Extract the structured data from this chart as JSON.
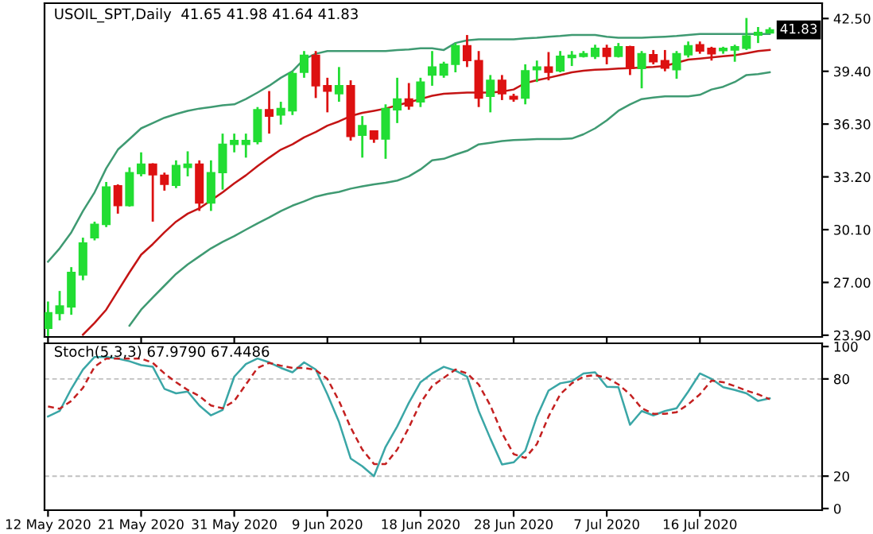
{
  "chart_data": [
    {
      "type": "candlestick",
      "title": "USOIL_SPT,Daily  41.65 41.98 41.64 41.83",
      "tick_labels": "y",
      "grid": false,
      "categories": [
        null,
        null,
        null,
        null,
        null,
        null,
        null,
        null,
        null,
        null,
        null,
        null,
        null,
        null,
        null,
        null,
        null,
        null,
        null,
        null,
        null,
        null,
        null,
        null,
        null,
        null,
        null,
        null,
        null,
        null,
        null,
        null,
        null,
        null,
        null,
        null,
        null,
        null,
        null,
        null,
        null,
        null,
        null,
        null,
        null,
        null,
        null,
        null,
        null,
        null,
        null,
        null,
        null,
        null,
        null,
        null,
        null,
        null,
        null,
        null,
        null,
        null,
        null
      ],
      "ohlc": [
        [
          24.3,
          25.88,
          23.85,
          25.22
        ],
        [
          25.18,
          26.5,
          24.77,
          25.62
        ],
        [
          25.56,
          27.9,
          25.1,
          27.59
        ],
        [
          27.44,
          29.63,
          27.13,
          29.32
        ],
        [
          29.63,
          30.57,
          29.47,
          30.41
        ],
        [
          30.41,
          32.9,
          30.25,
          32.6
        ],
        [
          32.67,
          32.76,
          31.04,
          31.51
        ],
        [
          31.51,
          33.76,
          31.45,
          33.45
        ],
        [
          33.39,
          34.64,
          33.23,
          33.95
        ],
        [
          33.95,
          34.0,
          30.57,
          33.32
        ],
        [
          33.29,
          33.45,
          32.39,
          32.76
        ],
        [
          32.7,
          34.17,
          32.54,
          33.86
        ],
        [
          33.76,
          34.7,
          33.23,
          33.95
        ],
        [
          33.95,
          34.17,
          31.2,
          31.67
        ],
        [
          31.67,
          34.17,
          31.2,
          33.45
        ],
        [
          33.45,
          35.74,
          32.45,
          35.11
        ],
        [
          35.11,
          35.74,
          34.64,
          35.33
        ],
        [
          35.11,
          35.74,
          34.33,
          35.33
        ],
        [
          35.27,
          37.3,
          35.11,
          37.14
        ],
        [
          37.14,
          38.24,
          35.74,
          36.77
        ],
        [
          36.83,
          37.61,
          36.27,
          37.21
        ],
        [
          37.08,
          39.4,
          36.83,
          39.27
        ],
        [
          39.34,
          40.59,
          39.02,
          40.34
        ],
        [
          40.34,
          40.59,
          37.83,
          38.55
        ],
        [
          38.55,
          39.02,
          36.99,
          38.24
        ],
        [
          38.08,
          39.65,
          37.61,
          38.55
        ],
        [
          38.55,
          38.87,
          35.33,
          35.58
        ],
        [
          35.64,
          36.77,
          34.33,
          36.21
        ],
        [
          35.89,
          35.89,
          35.2,
          35.42
        ],
        [
          35.42,
          37.46,
          34.26,
          37.21
        ],
        [
          37.14,
          39.02,
          36.36,
          37.77
        ],
        [
          37.77,
          38.71,
          37.14,
          37.36
        ],
        [
          37.61,
          39.02,
          37.3,
          38.77
        ],
        [
          39.18,
          40.59,
          38.55,
          39.65
        ],
        [
          39.18,
          39.96,
          39.02,
          39.81
        ],
        [
          39.81,
          41.06,
          39.34,
          40.9
        ],
        [
          40.9,
          41.53,
          39.65,
          40.03
        ],
        [
          40.03,
          40.59,
          37.3,
          37.83
        ],
        [
          37.93,
          39.18,
          36.99,
          38.87
        ],
        [
          38.87,
          39.18,
          37.71,
          38.08
        ],
        [
          37.93,
          38.08,
          37.61,
          37.77
        ],
        [
          37.83,
          39.81,
          37.46,
          39.43
        ],
        [
          39.49,
          40.03,
          38.77,
          39.65
        ],
        [
          39.65,
          40.53,
          38.87,
          39.34
        ],
        [
          39.43,
          40.59,
          39.34,
          40.28
        ],
        [
          40.21,
          40.59,
          39.71,
          40.34
        ],
        [
          40.28,
          40.59,
          40.21,
          40.43
        ],
        [
          40.28,
          40.96,
          40.12,
          40.75
        ],
        [
          40.75,
          40.96,
          39.81,
          40.28
        ],
        [
          40.28,
          41.06,
          40.21,
          40.84
        ],
        [
          40.84,
          40.9,
          39.18,
          39.56
        ],
        [
          39.56,
          40.59,
          38.4,
          40.43
        ],
        [
          40.37,
          40.65,
          39.81,
          39.96
        ],
        [
          40.03,
          40.65,
          39.4,
          39.59
        ],
        [
          39.49,
          40.59,
          38.96,
          40.43
        ],
        [
          40.37,
          41.15,
          40.21,
          40.9
        ],
        [
          40.96,
          41.15,
          40.43,
          40.59
        ],
        [
          40.75,
          40.84,
          40.03,
          40.43
        ],
        [
          40.62,
          40.84,
          40.43,
          40.75
        ],
        [
          40.65,
          40.96,
          39.96,
          40.84
        ],
        [
          40.75,
          42.53,
          40.65,
          41.47
        ],
        [
          41.53,
          42.0,
          41.06,
          41.68
        ],
        [
          41.65,
          41.98,
          41.64,
          41.83
        ]
      ],
      "colors": [
        "#22dd33",
        "#22dd33",
        "#22dd33",
        "#22dd33",
        "#22dd33",
        "#22dd33",
        "#dd1111",
        "#22dd33",
        "#22dd33",
        "#dd1111",
        "#dd1111",
        "#22dd33",
        "#22dd33",
        "#dd1111",
        "#22dd33",
        "#22dd33",
        "#22dd33",
        "#22dd33",
        "#22dd33",
        "#dd1111",
        "#22dd33",
        "#22dd33",
        "#22dd33",
        "#dd1111",
        "#dd1111",
        "#22dd33",
        "#dd1111",
        "#22dd33",
        "#dd1111",
        "#22dd33",
        "#22dd33",
        "#dd1111",
        "#22dd33",
        "#22dd33",
        "#22dd33",
        "#22dd33",
        "#dd1111",
        "#dd1111",
        "#22dd33",
        "#dd1111",
        "#dd1111",
        "#22dd33",
        "#22dd33",
        "#dd1111",
        "#22dd33",
        "#22dd33",
        "#22dd33",
        "#22dd33",
        "#dd1111",
        "#22dd33",
        "#dd1111",
        "#22dd33",
        "#dd1111",
        "#dd1111",
        "#22dd33",
        "#22dd33",
        "#dd1111",
        "#dd1111",
        "#22dd33",
        "#22dd33",
        "#22dd33",
        "#22dd33",
        "#22dd33"
      ],
      "series": [
        {
          "type": "line",
          "color": "#3f9a72",
          "values": [
            28.22,
            29.0,
            29.94,
            31.19,
            32.29,
            33.7,
            34.8,
            35.42,
            36.05,
            36.36,
            36.67,
            36.89,
            37.08,
            37.21,
            37.3,
            37.4,
            37.46,
            37.77,
            38.15,
            38.55,
            39.02,
            39.4,
            40.12,
            40.43,
            40.59,
            40.59,
            40.59,
            40.59,
            40.59,
            40.59,
            40.65,
            40.68,
            40.75,
            40.75,
            40.65,
            41.06,
            41.22,
            41.28,
            41.28,
            41.28,
            41.28,
            41.34,
            41.37,
            41.43,
            41.47,
            41.53,
            41.53,
            41.53,
            41.43,
            41.37,
            41.37,
            41.37,
            41.4,
            41.43,
            41.47,
            41.53,
            41.59,
            41.59,
            41.59,
            41.59,
            41.59,
            41.59,
            41.59
          ]
        },
        {
          "type": "line",
          "color": "#c41414",
          "values": [
            null,
            null,
            null,
            23.93,
            24.62,
            25.4,
            26.5,
            27.59,
            28.63,
            29.25,
            29.94,
            30.57,
            31.04,
            31.35,
            31.82,
            32.29,
            32.82,
            33.29,
            33.83,
            34.33,
            34.8,
            35.11,
            35.52,
            35.83,
            36.21,
            36.46,
            36.77,
            36.96,
            37.08,
            37.21,
            37.4,
            37.58,
            37.77,
            37.96,
            38.08,
            38.12,
            38.15,
            38.15,
            38.15,
            38.21,
            38.33,
            38.71,
            38.87,
            39.02,
            39.18,
            39.34,
            39.43,
            39.49,
            39.52,
            39.56,
            39.59,
            39.62,
            39.65,
            39.71,
            39.9,
            40.09,
            40.15,
            40.21,
            40.28,
            40.34,
            40.46,
            40.59,
            40.65
          ]
        },
        {
          "type": "line",
          "color": "#3f9a72",
          "values": [
            null,
            null,
            null,
            null,
            null,
            null,
            null,
            24.46,
            25.4,
            26.12,
            26.81,
            27.5,
            28.06,
            28.53,
            29.0,
            29.38,
            29.72,
            30.1,
            30.47,
            30.82,
            31.19,
            31.51,
            31.76,
            32.04,
            32.2,
            32.32,
            32.51,
            32.64,
            32.76,
            32.85,
            32.98,
            33.23,
            33.64,
            34.17,
            34.26,
            34.51,
            34.73,
            35.11,
            35.2,
            35.3,
            35.36,
            35.39,
            35.42,
            35.42,
            35.42,
            35.45,
            35.7,
            36.05,
            36.52,
            37.08,
            37.46,
            37.77,
            37.86,
            37.93,
            37.93,
            37.93,
            38.02,
            38.33,
            38.49,
            38.77,
            39.18,
            39.24,
            39.34
          ]
        }
      ],
      "ylim": [
        23.8,
        43.4
      ],
      "yticks": [
        {
          "value": 23.9,
          "label": "23.90"
        },
        {
          "value": 27,
          "label": "27.00"
        },
        {
          "value": 30.1,
          "label": "30.10"
        },
        {
          "value": 33.2,
          "label": "33.20"
        },
        {
          "value": 36.3,
          "label": "36.30"
        },
        {
          "value": 39.4,
          "label": "39.40"
        },
        {
          "value": 42.5,
          "label": "42.50"
        }
      ],
      "annotations": [
        {
          "text": "41.83",
          "y": 41.83
        }
      ]
    },
    {
      "type": "line",
      "title": "Stoch(5,3,3) 67.9790 67.4486",
      "grid": false,
      "categories": [
        "12 May 2020",
        null,
        null,
        null,
        null,
        null,
        null,
        null,
        "21 May 2020",
        null,
        null,
        null,
        null,
        null,
        null,
        null,
        "31 May 2020",
        null,
        null,
        null,
        null,
        null,
        null,
        null,
        "9 Jun 2020",
        null,
        null,
        null,
        null,
        null,
        null,
        null,
        "18 Jun 2020",
        null,
        null,
        null,
        null,
        null,
        null,
        null,
        "28 Jun 2020",
        null,
        null,
        null,
        null,
        null,
        null,
        null,
        "7 Jul 2020",
        null,
        null,
        null,
        null,
        null,
        null,
        null,
        "16 Jul 2020",
        null,
        null,
        null,
        null,
        null,
        null
      ],
      "series": [
        {
          "color": "#3aa6a6",
          "line_style": "solid",
          "values": [
            56.8,
            60.2,
            73.9,
            85.8,
            93.6,
            93.6,
            92.6,
            90.9,
            88.5,
            87.5,
            73.9,
            71.1,
            72.2,
            63.6,
            57.5,
            60.9,
            81.4,
            89.2,
            92.6,
            90.2,
            86.8,
            84.1,
            90.2,
            85.8,
            70.5,
            53.4,
            30.9,
            26.1,
            20.0,
            38.1,
            50.7,
            65.3,
            78.0,
            83.4,
            87.5,
            85.1,
            81.4,
            60.2,
            43.2,
            27.2,
            28.5,
            35.7,
            56.8,
            72.8,
            77.3,
            78.6,
            83.4,
            84.1,
            75.2,
            74.9,
            51.7,
            60.2,
            57.5,
            60.2,
            61.9,
            72.2,
            83.4,
            80.0,
            74.9,
            73.2,
            71.1,
            66.4,
            67.98
          ]
        },
        {
          "color": "#c42020",
          "line_style": "dashed",
          "values": [
            63.0,
            61.6,
            66.4,
            74.5,
            87.5,
            92.6,
            92.6,
            92.6,
            92.6,
            89.9,
            83.4,
            78.0,
            73.2,
            69.4,
            63.6,
            61.9,
            66.4,
            76.6,
            86.8,
            89.9,
            88.2,
            86.8,
            86.8,
            85.5,
            80.0,
            66.4,
            50.0,
            36.4,
            27.5,
            27.5,
            36.4,
            50.0,
            65.3,
            75.6,
            80.7,
            85.8,
            83.4,
            76.6,
            63.6,
            46.6,
            33.6,
            31.2,
            39.8,
            56.8,
            70.5,
            77.3,
            81.4,
            82.4,
            80.7,
            76.6,
            70.5,
            61.9,
            58.5,
            58.5,
            59.5,
            64.3,
            70.5,
            79.0,
            78.0,
            75.6,
            72.8,
            70.5,
            67.45
          ]
        }
      ],
      "ylim": [
        -1,
        102
      ],
      "yticks": [
        0,
        20,
        80,
        100
      ],
      "ref_lines": [
        {
          "axis": "y",
          "value": 80,
          "color": "#c0c0c0",
          "line_style": "dashed"
        },
        {
          "axis": "y",
          "value": 20,
          "color": "#c0c0c0",
          "line_style": "dashed"
        }
      ]
    }
  ]
}
